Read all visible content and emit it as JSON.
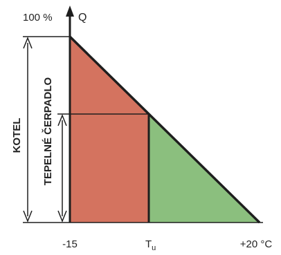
{
  "axis": {
    "y_top_label": "100 %",
    "y_axis_label": "Q"
  },
  "x_ticks": {
    "left": "-15",
    "mid_main": "T",
    "mid_sub": "u",
    "right": "+20 °C"
  },
  "brackets": {
    "outer_label": "KOTEL",
    "inner_label": "TEPELNÉ ČERPADLO"
  },
  "colors": {
    "boiler_region": "#d4735f",
    "heatpump_region": "#8bbf7e",
    "lines": "#1e1e1e"
  }
}
